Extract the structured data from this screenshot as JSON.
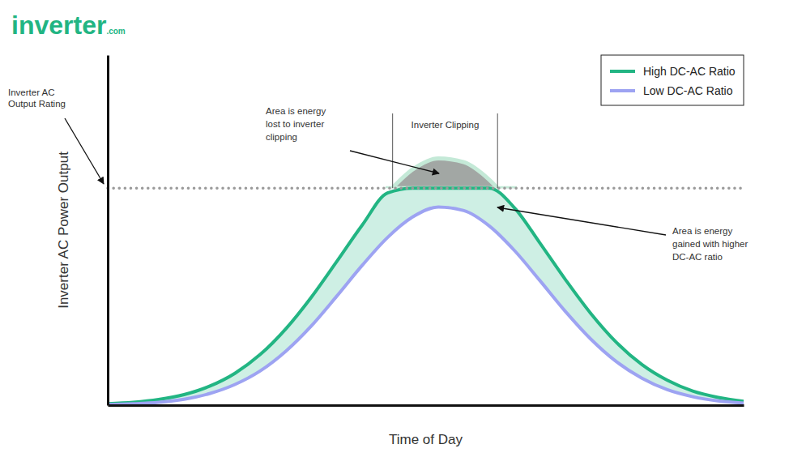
{
  "header": {
    "logo": "inverter",
    "logo_suffix": ".com"
  },
  "chart_data": {
    "type": "line",
    "x_label": "Time of Day",
    "y_label": "Inverter AC Power Output",
    "xlim": [
      0,
      100
    ],
    "ylim": [
      0,
      100
    ],
    "tick_labels": false,
    "grid": false,
    "legend": "upper right",
    "x": [
      0,
      4,
      8,
      12,
      16,
      20,
      24,
      28,
      32,
      36,
      40,
      44,
      48,
      52,
      56,
      60,
      64,
      68,
      72,
      76,
      80,
      84,
      88,
      92,
      96,
      100
    ],
    "series": [
      {
        "name": "High DC-AC Ratio",
        "color": "#22b583",
        "values": [
          0.4,
          0.8,
          1.6,
          3.0,
          5.4,
          9.1,
          14.5,
          21.8,
          30.8,
          41.0,
          51.4,
          60.6,
          62,
          62,
          62,
          62,
          56.3,
          46.2,
          35.8,
          26.1,
          17.9,
          11.6,
          7.1,
          4.0,
          2.2,
          1.1
        ]
      },
      {
        "name": "Low DC-AC Ratio",
        "color": "#9da3f2",
        "values": [
          0.2,
          0.4,
          0.8,
          1.7,
          3.3,
          5.9,
          9.8,
          15.4,
          22.6,
          31.1,
          39.9,
          47.9,
          53.8,
          56.6,
          55.6,
          51.2,
          44.1,
          35.5,
          26.7,
          18.8,
          12.4,
          7.7,
          4.4,
          2.4,
          1.2,
          0.6
        ]
      }
    ],
    "reference_line": {
      "value": 62,
      "lines": [
        "Inverter AC",
        "Output Rating"
      ]
    },
    "clipping": {
      "label": "Inverter Clipping",
      "start": 44.8,
      "end": 61.3,
      "x": [
        44,
        48,
        52,
        56,
        60,
        64
      ],
      "values": [
        60.6,
        67.4,
        70.5,
        69.4,
        64.4,
        56.3
      ]
    },
    "annotations": [
      {
        "lines": [
          "Area is energy",
          "lost to inverter",
          "clipping"
        ]
      },
      {
        "lines": [
          "Area is energy",
          "gained with higher",
          "DC-AC ratio"
        ]
      }
    ]
  }
}
